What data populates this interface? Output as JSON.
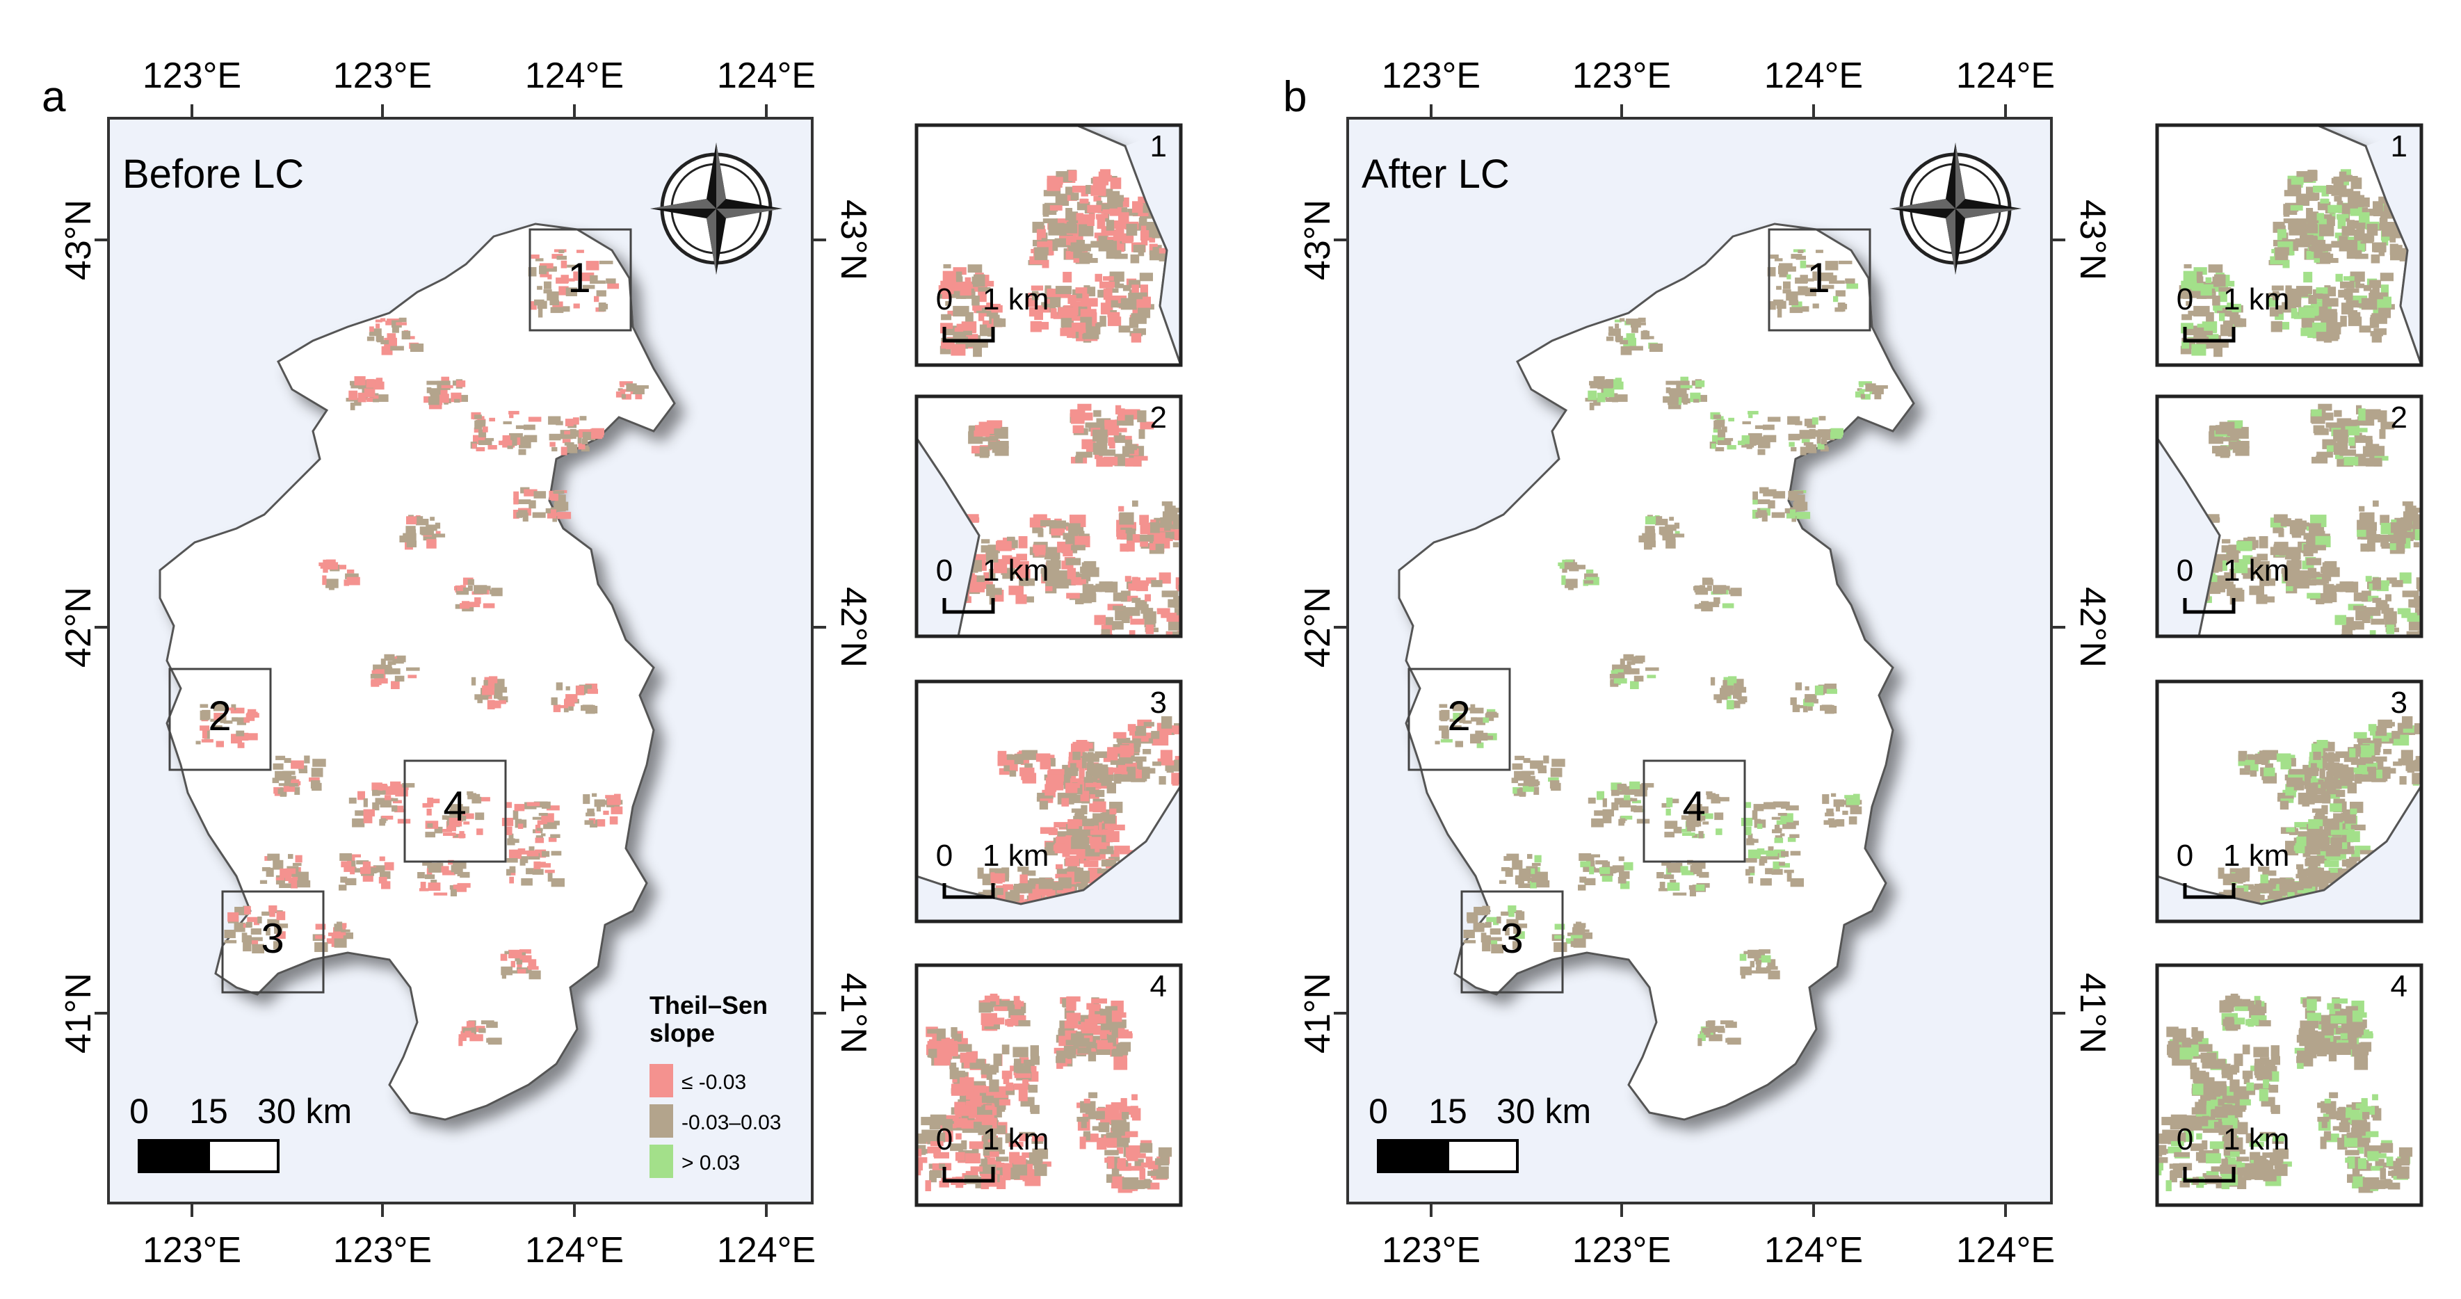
{
  "panels": [
    {
      "letter": "a",
      "title": "Before LC",
      "top_ticks": [
        "123°E",
        "123°E",
        "124°E",
        "124°E"
      ],
      "bottom_ticks": [
        "123°E",
        "123°E",
        "124°E",
        "124°E"
      ],
      "lat_ticks": [
        "43°N",
        "42°N",
        "41°N"
      ],
      "scale_labels": [
        "0",
        "15",
        "30 km"
      ],
      "regions": [
        "1",
        "2",
        "3",
        "4"
      ],
      "palette": "red"
    },
    {
      "letter": "b",
      "title": "After LC",
      "top_ticks": [
        "123°E",
        "123°E",
        "124°E",
        "124°E"
      ],
      "bottom_ticks": [
        "123°E",
        "123°E",
        "124°E",
        "124°E"
      ],
      "lat_ticks": [
        "43°N",
        "42°N",
        "41°N"
      ],
      "scale_labels": [
        "0",
        "15",
        "30 km"
      ],
      "regions": [
        "1",
        "2",
        "3",
        "4"
      ],
      "palette": "green"
    }
  ],
  "insets": {
    "numbers": [
      "1",
      "2",
      "3",
      "4"
    ],
    "scale_labels": [
      "0",
      "1 km"
    ]
  },
  "legend": {
    "title_line1": "Theil–Sen",
    "title_line2": "slope",
    "items": [
      {
        "label": "≤ -0.03",
        "color": "#f4928f"
      },
      {
        "label": "-0.03–0.03",
        "color": "#b3a48c"
      },
      {
        "label": "> 0.03",
        "color": "#a3e08a"
      }
    ]
  },
  "colors": {
    "background": "#eef2fa",
    "land": "#ffffff",
    "decline": "#f4928f",
    "stable": "#b3a48c",
    "increase": "#a3e08a"
  }
}
